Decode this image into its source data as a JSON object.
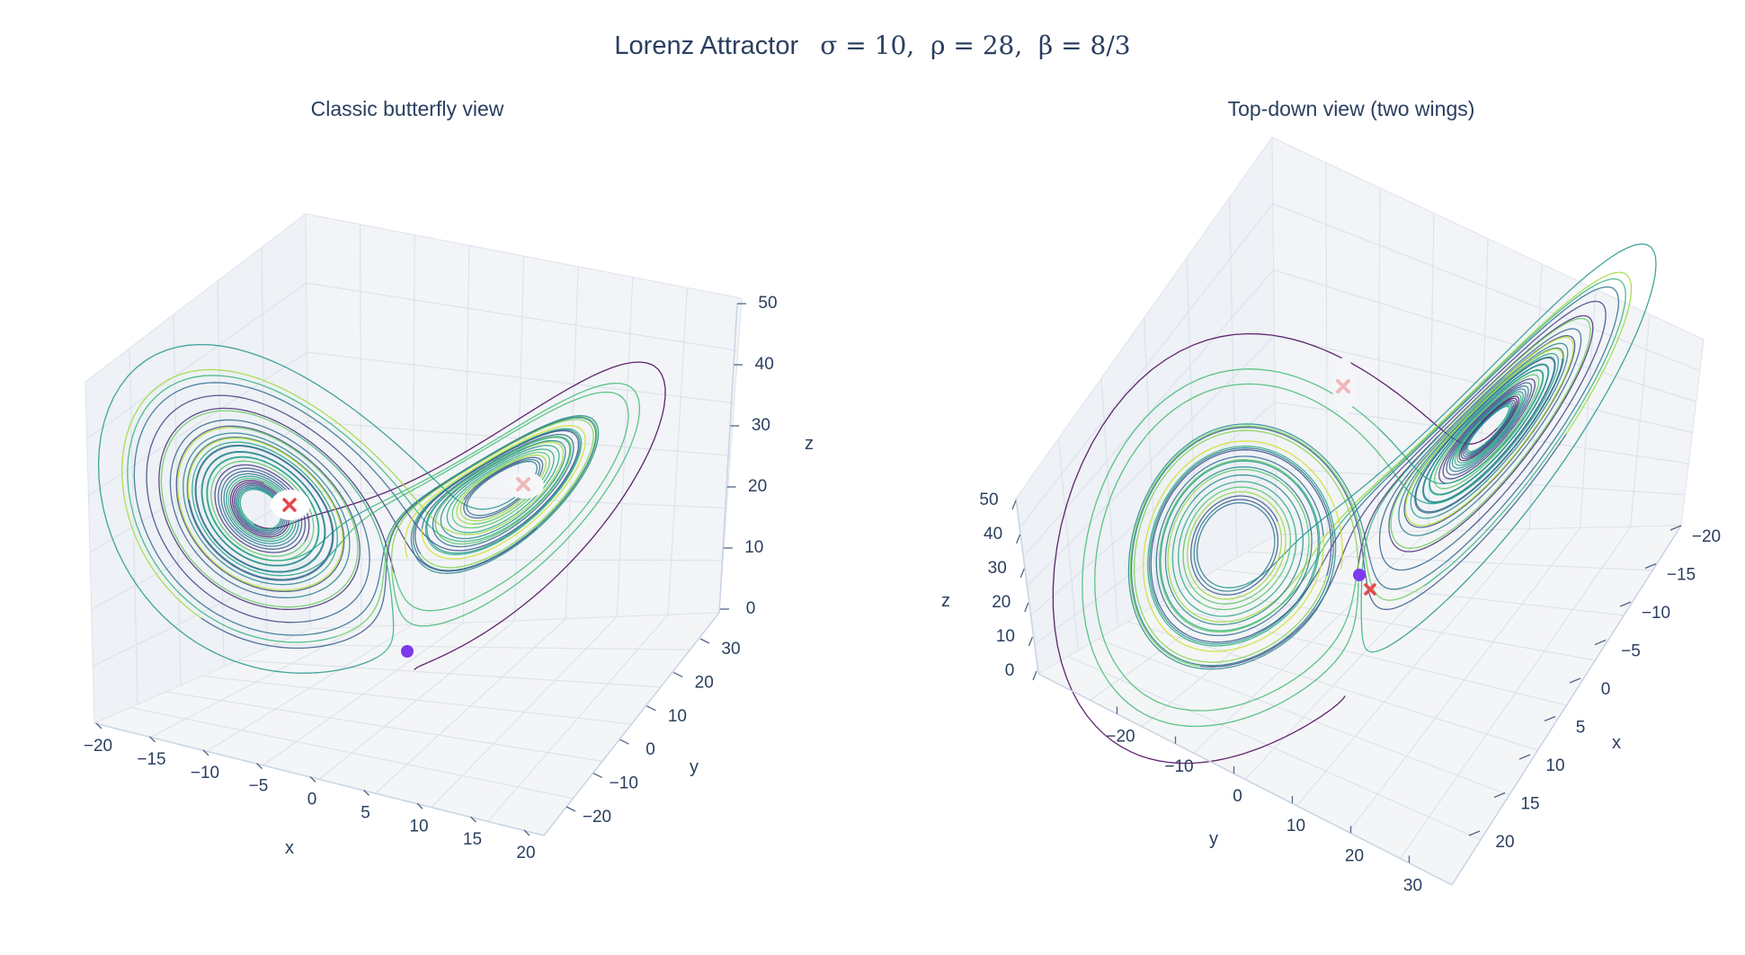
{
  "chart_data": {
    "type": "line",
    "title_text": "Lorenz Attractor",
    "title_math": "σ = 10,  ρ = 28,  β = 8/3",
    "parameters": {
      "sigma": 10,
      "rho": 28,
      "beta": "8/3"
    },
    "colorscale": "viridis",
    "start_point": {
      "x": 1,
      "y": 1,
      "z": 1,
      "color": "#7c3aed"
    },
    "fixed_points": [
      {
        "x": -8.49,
        "y": -8.49,
        "z": 27,
        "color": "#e5484d"
      },
      {
        "x": 8.49,
        "y": 8.49,
        "z": 27,
        "color": "#e5484d"
      }
    ],
    "panels": [
      {
        "title": "Classic butterfly view",
        "xlabel": "x",
        "ylabel": "y",
        "zlabel": "z",
        "x_ticks": [
          "−20",
          "−15",
          "−10",
          "−5",
          "0",
          "5",
          "10",
          "15",
          "20"
        ],
        "y_ticks": [
          "30",
          "20",
          "10",
          "0",
          "−10",
          "−20"
        ],
        "z_ticks": [
          "50",
          "40",
          "30",
          "20",
          "10",
          "0"
        ],
        "x_range": [
          -20,
          20
        ],
        "y_range": [
          -25,
          30
        ],
        "z_range": [
          0,
          50
        ]
      },
      {
        "title": "Top-down view (two wings)",
        "xlabel": "x",
        "ylabel": "y",
        "zlabel": "z",
        "x_ticks": [
          "−20",
          "−15",
          "−10",
          "−5",
          "0",
          "5",
          "10",
          "15",
          "20"
        ],
        "y_ticks": [
          "−20",
          "−10",
          "0",
          "10",
          "20",
          "30"
        ],
        "z_ticks": [
          "50",
          "40",
          "30",
          "20",
          "10",
          "0"
        ],
        "x_range": [
          -20,
          20
        ],
        "y_range": [
          -25,
          30
        ],
        "z_range": [
          0,
          50
        ]
      }
    ]
  }
}
